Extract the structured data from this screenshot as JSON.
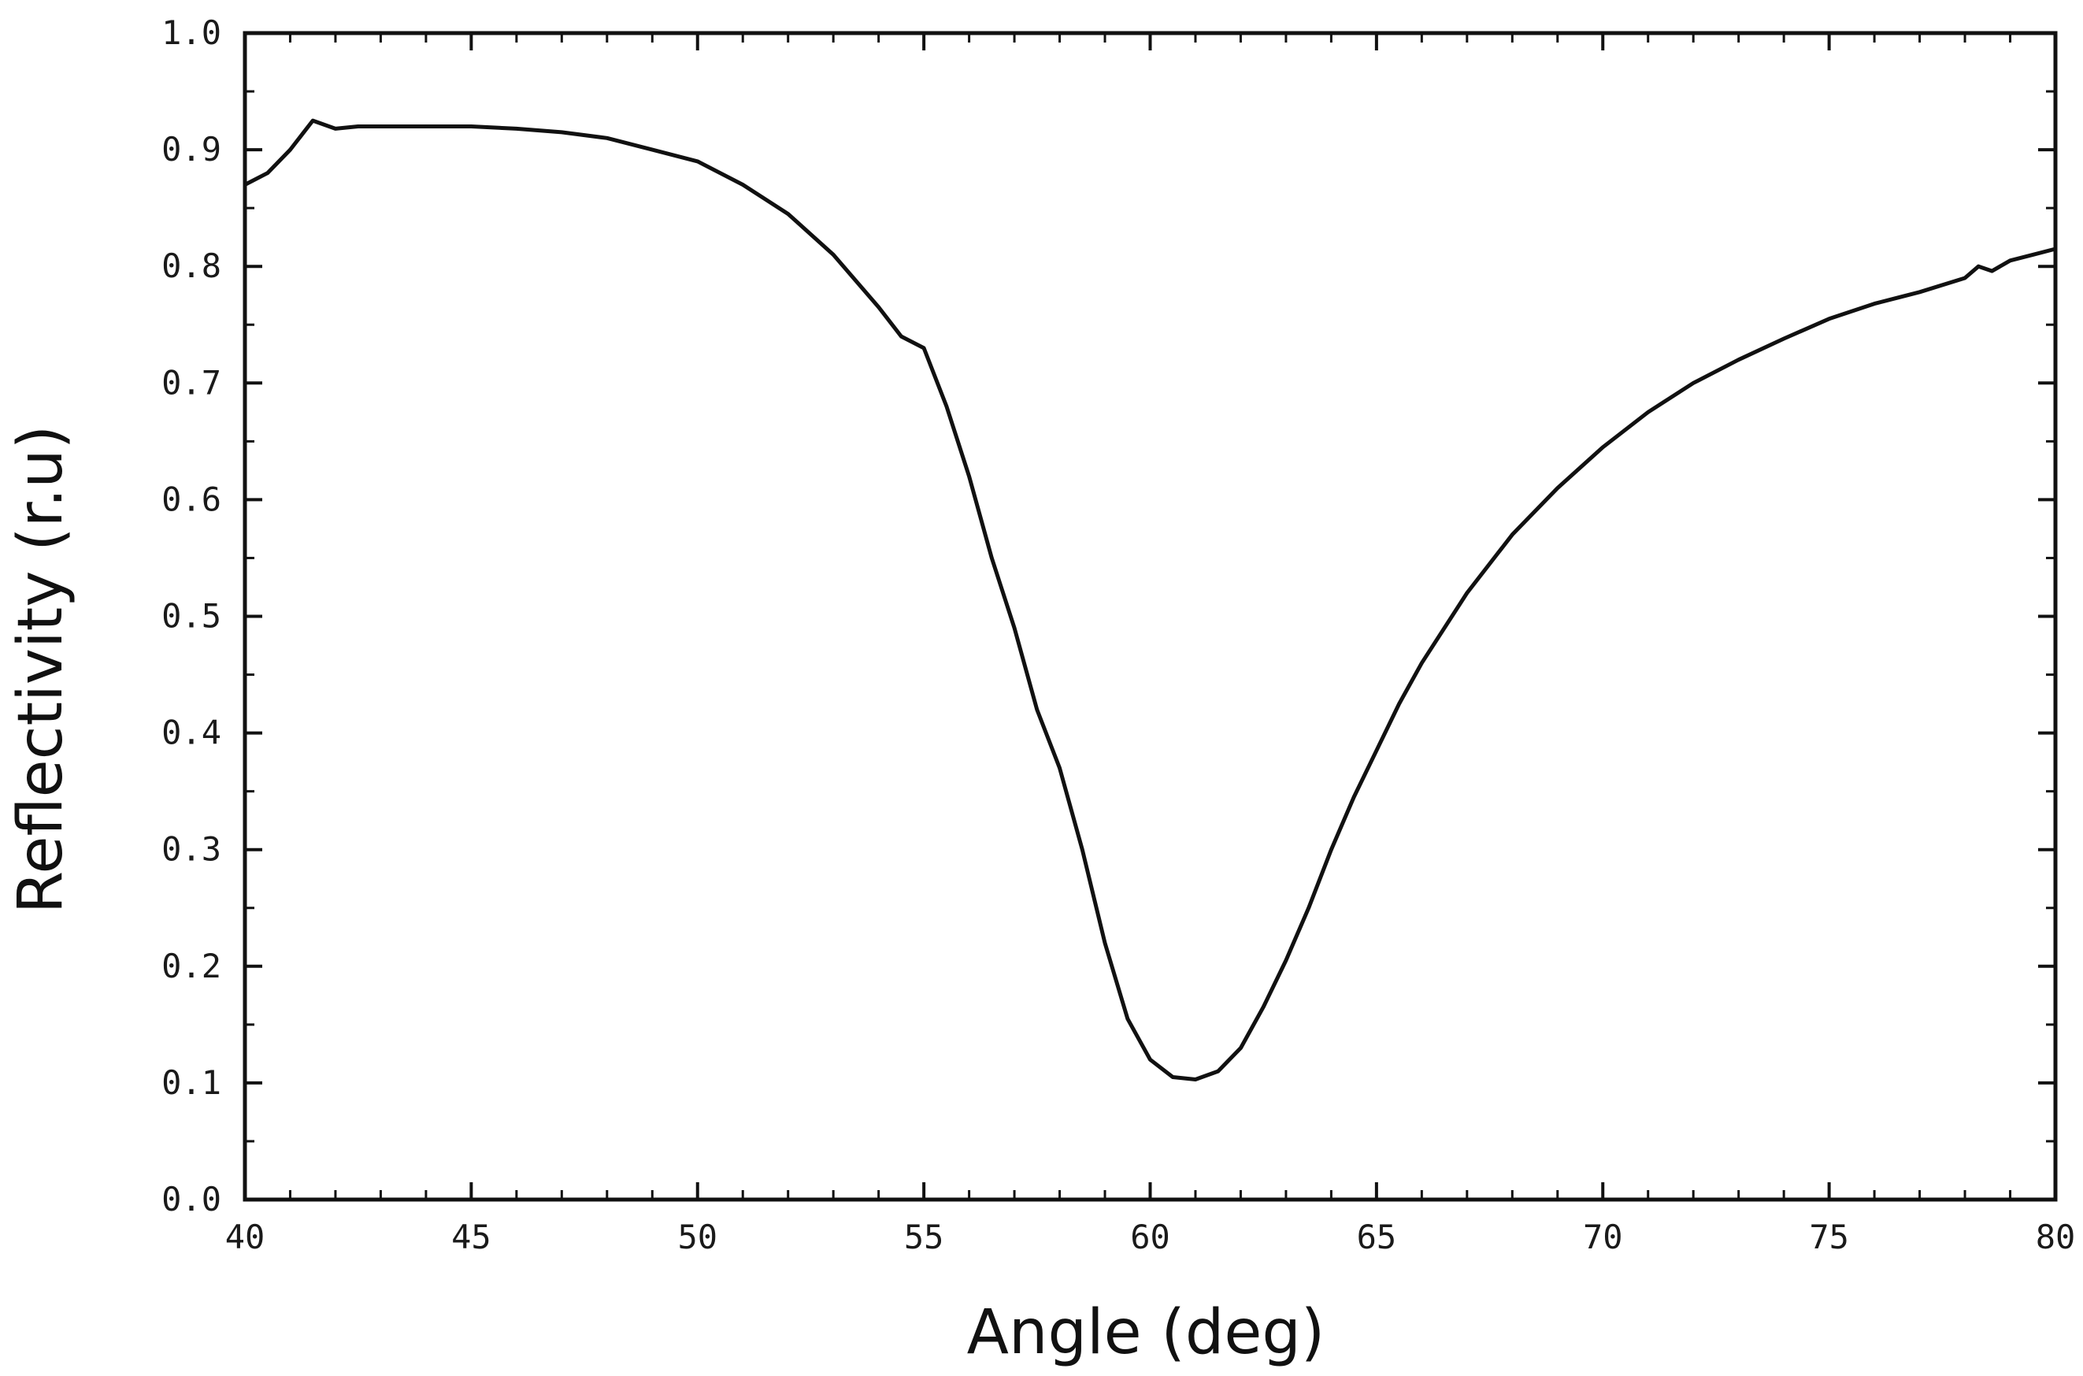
{
  "chart_data": {
    "type": "line",
    "title": "",
    "xlabel": "Angle (deg)",
    "ylabel": "Reflectivity (r.u)",
    "xlim": [
      40,
      80
    ],
    "ylim": [
      0.0,
      1.0
    ],
    "x_ticks": [
      40,
      45,
      50,
      55,
      60,
      65,
      70,
      75,
      80
    ],
    "x_tick_labels": [
      "40",
      "45",
      "50",
      "55",
      "60",
      "65",
      "70",
      "75",
      "80"
    ],
    "y_ticks": [
      0.0,
      0.1,
      0.2,
      0.3,
      0.4,
      0.5,
      0.6,
      0.7,
      0.8,
      0.9,
      1.0
    ],
    "y_tick_labels": [
      "0.0",
      "0.1",
      "0.2",
      "0.3",
      "0.4",
      "0.5",
      "0.6",
      "0.7",
      "0.8",
      "0.9",
      "1.0"
    ],
    "grid": false,
    "legend": "none",
    "colors": {
      "line": "#111111",
      "axes": "#111111"
    },
    "series": [
      {
        "name": "Reflectivity",
        "x": [
          40.0,
          40.5,
          41.0,
          41.5,
          42.0,
          42.5,
          43.0,
          44.0,
          45.0,
          46.0,
          47.0,
          48.0,
          49.0,
          50.0,
          51.0,
          52.0,
          53.0,
          54.0,
          54.5,
          55.0,
          55.5,
          56.0,
          56.5,
          57.0,
          57.5,
          58.0,
          58.5,
          59.0,
          59.5,
          60.0,
          60.5,
          61.0,
          61.5,
          62.0,
          62.5,
          63.0,
          63.5,
          64.0,
          64.5,
          65.0,
          65.5,
          66.0,
          67.0,
          68.0,
          69.0,
          70.0,
          71.0,
          72.0,
          73.0,
          74.0,
          75.0,
          76.0,
          77.0,
          78.0,
          78.3,
          78.6,
          79.0,
          79.5,
          80.0
        ],
        "y": [
          0.87,
          0.88,
          0.9,
          0.925,
          0.918,
          0.92,
          0.92,
          0.92,
          0.92,
          0.918,
          0.915,
          0.91,
          0.9,
          0.89,
          0.87,
          0.845,
          0.81,
          0.765,
          0.74,
          0.73,
          0.68,
          0.62,
          0.55,
          0.49,
          0.42,
          0.37,
          0.3,
          0.22,
          0.155,
          0.12,
          0.105,
          0.103,
          0.11,
          0.13,
          0.165,
          0.205,
          0.25,
          0.3,
          0.345,
          0.385,
          0.425,
          0.46,
          0.52,
          0.57,
          0.61,
          0.645,
          0.675,
          0.7,
          0.72,
          0.738,
          0.755,
          0.768,
          0.778,
          0.79,
          0.8,
          0.796,
          0.805,
          0.81,
          0.815
        ]
      }
    ]
  }
}
